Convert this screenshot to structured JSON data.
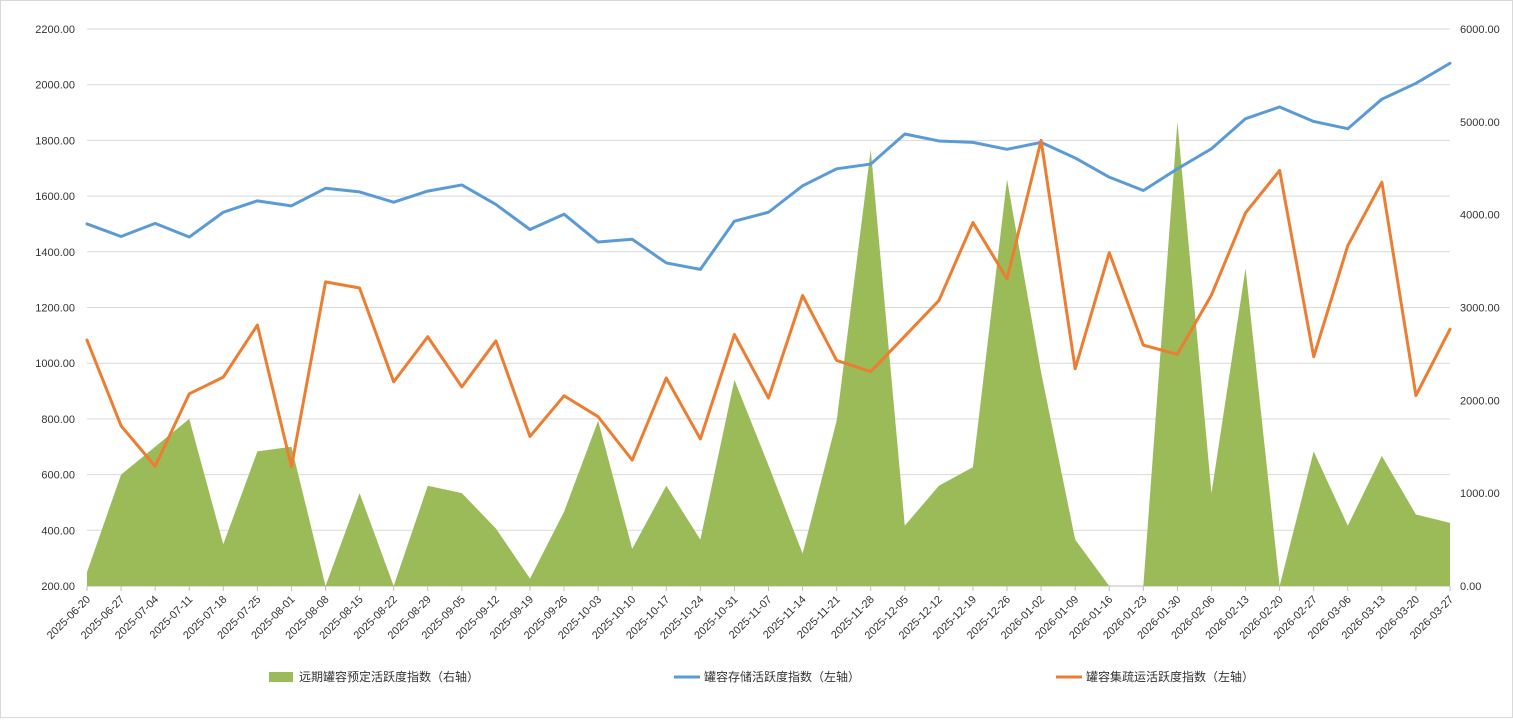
{
  "chart_data": {
    "type": "line",
    "title": "",
    "grid": true,
    "legend_position": "bottom",
    "x": [
      "2025-06-20",
      "2025-06-27",
      "2025-07-04",
      "2025-07-11",
      "2025-07-18",
      "2025-07-25",
      "2025-08-01",
      "2025-08-08",
      "2025-08-15",
      "2025-08-22",
      "2025-08-29",
      "2025-09-05",
      "2025-09-12",
      "2025-09-19",
      "2025-09-26",
      "2025-10-03",
      "2025-10-10",
      "2025-10-17",
      "2025-10-24",
      "2025-10-31",
      "2025-11-07",
      "2025-11-14",
      "2025-11-21",
      "2025-11-28",
      "2025-12-05",
      "2025-12-12",
      "2025-12-19",
      "2025-12-26",
      "2026-01-02",
      "2026-01-09",
      "2026-01-16",
      "2026-01-23",
      "2026-01-30",
      "2026-02-06",
      "2026-02-13",
      "2026-02-20",
      "2026-02-27",
      "2026-03-06",
      "2026-03-13",
      "2026-03-20",
      "2026-03-27"
    ],
    "y_left": {
      "min": 200,
      "max": 2200,
      "ticks": [
        "200.00",
        "400.00",
        "600.00",
        "800.00",
        "1000.00",
        "1200.00",
        "1400.00",
        "1600.00",
        "1800.00",
        "2000.00",
        "2200.00"
      ]
    },
    "y_right": {
      "min": 0,
      "max": 6000,
      "ticks": [
        "0.00",
        "1000.00",
        "2000.00",
        "3000.00",
        "4000.00",
        "5000.00",
        "6000.00"
      ]
    },
    "series": [
      {
        "name": "远期罐容预定活跃度指数（右轴）",
        "type": "area",
        "axis": "right",
        "color": "#9bbb59",
        "values": [
          150,
          1200,
          1500,
          1800,
          450,
          1450,
          1500,
          0,
          1000,
          0,
          1080,
          1000,
          620,
          80,
          800,
          1780,
          400,
          1080,
          500,
          2220,
          1300,
          350,
          1780,
          4700,
          650,
          1080,
          1280,
          4380,
          2300,
          500,
          0,
          0,
          5000,
          1000,
          3420,
          0,
          1450,
          650,
          1400,
          770,
          680
        ]
      },
      {
        "name": "罐容存储活跃度指数（左轴）",
        "type": "line",
        "axis": "left",
        "color": "#5b9bd5",
        "values": [
          1500,
          1455,
          1502,
          1453,
          1542,
          1583,
          1565,
          1628,
          1615,
          1578,
          1618,
          1640,
          1570,
          1480,
          1535,
          1435,
          1445,
          1360,
          1337,
          1510,
          1542,
          1637,
          1698,
          1715,
          1823,
          1798,
          1793,
          1768,
          1793,
          1737,
          1668,
          1620,
          1698,
          1770,
          1878,
          1920,
          1868,
          1842,
          1948,
          2005,
          2077
        ]
      },
      {
        "name": "罐容集疏运活跃度指数（左轴）",
        "type": "line",
        "axis": "left",
        "color": "#ed7d31",
        "values": [
          1083,
          775,
          630,
          890,
          950,
          1137,
          628,
          1292,
          1270,
          933,
          1095,
          915,
          1080,
          737,
          883,
          808,
          652,
          947,
          728,
          1103,
          875,
          1243,
          1010,
          970,
          1097,
          1225,
          1505,
          1303,
          1800,
          980,
          1397,
          1065,
          1032,
          1245,
          1540,
          1692,
          1023,
          1422,
          1650,
          884,
          1122
        ]
      }
    ]
  }
}
